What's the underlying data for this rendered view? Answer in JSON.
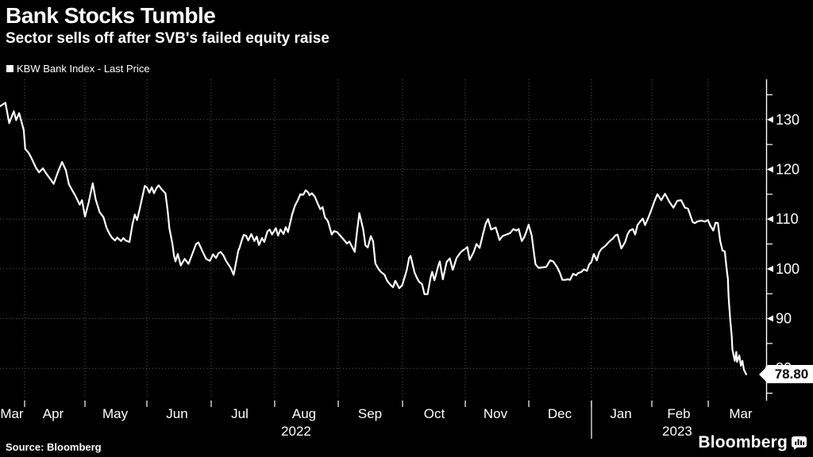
{
  "header": {
    "title": "Bank Stocks Tumble",
    "subtitle": "Sector sells off after SVB's failed equity raise"
  },
  "legend": {
    "items": [
      {
        "marker_icon": "white-square-marker",
        "label": "KBW Bank Index - Last Price"
      }
    ]
  },
  "footer": {
    "source": "Source: Bloomberg",
    "brand": "Bloomberg",
    "brand_icon": "bar-chart-badge"
  },
  "colors": {
    "background": "#000000",
    "foreground": "#ffffff",
    "line": "#ffffff",
    "grid": "#5a5a5a",
    "badge_bg": "#ffffff",
    "badge_text": "#000000"
  },
  "chart_data": {
    "type": "line",
    "title": "KBW Bank Index - Last Price",
    "legend_position": "top-left",
    "grid": "dotted",
    "x_axis": {
      "month_labels": [
        {
          "label": "Mar",
          "pos_pct": 1.55
        },
        {
          "label": "Apr",
          "pos_pct": 6.94
        },
        {
          "label": "May",
          "pos_pct": 15.03
        },
        {
          "label": "Jun",
          "pos_pct": 23.11
        },
        {
          "label": "Jul",
          "pos_pct": 31.3
        },
        {
          "label": "Aug",
          "pos_pct": 39.69
        },
        {
          "label": "Sep",
          "pos_pct": 48.29
        },
        {
          "label": "Oct",
          "pos_pct": 56.68
        },
        {
          "label": "Nov",
          "pos_pct": 64.66
        },
        {
          "label": "Dec",
          "pos_pct": 73.06
        },
        {
          "label": "Jan",
          "pos_pct": 81.04
        },
        {
          "label": "Feb",
          "pos_pct": 88.6
        },
        {
          "label": "Mar",
          "pos_pct": 96.68
        }
      ],
      "year_labels": [
        {
          "label": "2022",
          "pos_pct": 38.65
        },
        {
          "label": "2023",
          "pos_pct": 88.39
        }
      ],
      "month_boundaries_pct": [
        3.21,
        11.09,
        19.17,
        27.56,
        35.85,
        44.15,
        52.54,
        60.73,
        69.02,
        77.2,
        85.08,
        92.44
      ],
      "year_divider_pct": 77.2
    },
    "y_axis": {
      "side": "right",
      "min": 73.5,
      "max": 138.1,
      "major_ticks": [
        130,
        120,
        110,
        100,
        90,
        80
      ],
      "minor_ticks": [
        135,
        125,
        115,
        105,
        95,
        85,
        75
      ]
    },
    "last_price": 78.8,
    "last_price_label": "78.80",
    "series": [
      {
        "name": "KBW Bank Index - Last Price",
        "color": "#ffffff",
        "points_pct_value": [
          [
            0,
            132.7
          ],
          [
            0.7,
            133.4
          ],
          [
            1.2,
            129.3
          ],
          [
            1.8,
            131.7
          ],
          [
            2.1,
            129.9
          ],
          [
            2.5,
            131.3
          ],
          [
            3.1,
            127.9
          ],
          [
            3.3,
            124.1
          ],
          [
            3.7,
            123.4
          ],
          [
            4,
            122.6
          ],
          [
            4.7,
            120.3
          ],
          [
            5.1,
            119.4
          ],
          [
            5.6,
            120.2
          ],
          [
            6.1,
            119
          ],
          [
            6.6,
            118
          ],
          [
            7,
            117.1
          ],
          [
            7.6,
            119.6
          ],
          [
            8.1,
            121.5
          ],
          [
            8.6,
            119.8
          ],
          [
            9,
            117
          ],
          [
            9.5,
            115.6
          ],
          [
            9.8,
            114.8
          ],
          [
            10.4,
            112.9
          ],
          [
            10.7,
            113.8
          ],
          [
            11.1,
            110.5
          ],
          [
            11.6,
            113.5
          ],
          [
            12.1,
            117.2
          ],
          [
            12.5,
            113.9
          ],
          [
            13,
            111.4
          ],
          [
            13.5,
            110.4
          ],
          [
            13.9,
            108.3
          ],
          [
            14.3,
            107
          ],
          [
            14.6,
            106.3
          ],
          [
            15,
            105.7
          ],
          [
            15.3,
            106.3
          ],
          [
            15.8,
            105.6
          ],
          [
            16.1,
            106.2
          ],
          [
            16.4,
            105.7
          ],
          [
            16.9,
            105.4
          ],
          [
            17.3,
            109
          ],
          [
            17.6,
            110.9
          ],
          [
            17.9,
            109.8
          ],
          [
            18.3,
            112.5
          ],
          [
            18.9,
            116.7
          ],
          [
            19.2,
            116.3
          ],
          [
            19.5,
            115.3
          ],
          [
            19.8,
            116.4
          ],
          [
            20.1,
            115.2
          ],
          [
            20.4,
            116.2
          ],
          [
            20.7,
            116.8
          ],
          [
            21.1,
            116
          ],
          [
            21.6,
            115.2
          ],
          [
            21.9,
            111.5
          ],
          [
            22.1,
            108.2
          ],
          [
            22.5,
            105.1
          ],
          [
            22.7,
            102.7
          ],
          [
            22.9,
            101.5
          ],
          [
            23.2,
            103
          ],
          [
            23.6,
            100.7
          ],
          [
            24.1,
            102
          ],
          [
            24.6,
            101
          ],
          [
            25.1,
            103
          ],
          [
            25.6,
            105
          ],
          [
            25.9,
            105.3
          ],
          [
            26.4,
            103.6
          ],
          [
            26.9,
            102
          ],
          [
            27.4,
            101.6
          ],
          [
            27.8,
            102.9
          ],
          [
            28.2,
            102.2
          ],
          [
            28.5,
            103.1
          ],
          [
            28.8,
            103.4
          ],
          [
            29.2,
            102.6
          ],
          [
            29.5,
            101.6
          ],
          [
            30.1,
            100.2
          ],
          [
            30.5,
            98.8
          ],
          [
            31.1,
            103.6
          ],
          [
            31.3,
            104.4
          ],
          [
            31.6,
            105.9
          ],
          [
            31.8,
            106.8
          ],
          [
            32.1,
            106.7
          ],
          [
            32.4,
            105.7
          ],
          [
            32.8,
            107
          ],
          [
            33.2,
            105.6
          ],
          [
            33.5,
            106.5
          ],
          [
            33.8,
            104.8
          ],
          [
            34.2,
            106.2
          ],
          [
            34.5,
            105.4
          ],
          [
            34.9,
            107.5
          ],
          [
            35.2,
            107.9
          ],
          [
            35.5,
            106.9
          ],
          [
            36,
            108.2
          ],
          [
            36.3,
            106.7
          ],
          [
            36.6,
            107.9
          ],
          [
            37,
            107
          ],
          [
            37.3,
            108.4
          ],
          [
            37.6,
            107.4
          ],
          [
            38.1,
            110.8
          ],
          [
            38.5,
            112.7
          ],
          [
            38.9,
            113.9
          ],
          [
            39.2,
            115
          ],
          [
            39.6,
            114.9
          ],
          [
            39.9,
            115.8
          ],
          [
            40.2,
            115.4
          ],
          [
            40.4,
            114.8
          ],
          [
            40.7,
            115.2
          ],
          [
            41.1,
            114.5
          ],
          [
            41.5,
            113
          ],
          [
            41.8,
            112
          ],
          [
            42.1,
            112.4
          ],
          [
            42.4,
            110.4
          ],
          [
            42.8,
            109.6
          ],
          [
            43.1,
            108
          ],
          [
            43.3,
            106.9
          ],
          [
            43.6,
            107.6
          ],
          [
            44,
            107.4
          ],
          [
            44.4,
            106.7
          ],
          [
            44.9,
            105.8
          ],
          [
            45.3,
            105.1
          ],
          [
            45.6,
            105.5
          ],
          [
            45.9,
            104.6
          ],
          [
            46.3,
            103.4
          ],
          [
            46.6,
            107.5
          ],
          [
            46.9,
            111.2
          ],
          [
            47.4,
            108
          ],
          [
            47.7,
            104.7
          ],
          [
            48,
            104.3
          ],
          [
            48.4,
            106.6
          ],
          [
            48.7,
            105.5
          ],
          [
            49,
            101.1
          ],
          [
            49.4,
            100
          ],
          [
            49.7,
            99.4
          ],
          [
            50.2,
            98.8
          ],
          [
            50.5,
            97.7
          ],
          [
            50.9,
            96.9
          ],
          [
            51.3,
            96.3
          ],
          [
            51.6,
            97.6
          ],
          [
            52.1,
            96.1
          ],
          [
            52.5,
            96.7
          ],
          [
            53.1,
            99.8
          ],
          [
            53.4,
            102.2
          ],
          [
            53.6,
            102.6
          ],
          [
            54.1,
            99.3
          ],
          [
            54.4,
            98.2
          ],
          [
            54.7,
            97.4
          ],
          [
            55.1,
            96.9
          ],
          [
            55.4,
            94.9
          ],
          [
            55.8,
            94.9
          ],
          [
            56.2,
            98.2
          ],
          [
            56.4,
            99.4
          ],
          [
            56.7,
            97.7
          ],
          [
            57.2,
            100.6
          ],
          [
            57.4,
            101.5
          ],
          [
            57.8,
            97.9
          ],
          [
            58.3,
            101.4
          ],
          [
            58.7,
            102.1
          ],
          [
            59.1,
            99.8
          ],
          [
            59.6,
            102.2
          ],
          [
            60.1,
            103.3
          ],
          [
            60.4,
            103.7
          ],
          [
            60.7,
            104
          ],
          [
            61,
            104.4
          ],
          [
            61.3,
            101.8
          ],
          [
            61.8,
            103.3
          ],
          [
            62.2,
            105
          ],
          [
            62.6,
            104.2
          ],
          [
            63,
            106.8
          ],
          [
            63.4,
            109.1
          ],
          [
            63.7,
            110
          ],
          [
            64.1,
            107.9
          ],
          [
            64.7,
            108.3
          ],
          [
            65.2,
            105.8
          ],
          [
            65.6,
            106.6
          ],
          [
            66.1,
            106.9
          ],
          [
            66.6,
            107.2
          ],
          [
            67,
            108
          ],
          [
            67.4,
            107.7
          ],
          [
            67.7,
            108
          ],
          [
            68.1,
            105.6
          ],
          [
            68.4,
            106.3
          ],
          [
            68.7,
            107.5
          ],
          [
            69,
            108.9
          ],
          [
            69.4,
            106.7
          ],
          [
            69.7,
            103.1
          ],
          [
            69.9,
            100.9
          ],
          [
            70.3,
            100.2
          ],
          [
            70.8,
            100.3
          ],
          [
            71.3,
            100.4
          ],
          [
            71.8,
            101.7
          ],
          [
            72.2,
            101.5
          ],
          [
            72.7,
            100.4
          ],
          [
            73.1,
            99.1
          ],
          [
            73.4,
            97.8
          ],
          [
            73.8,
            97.8
          ],
          [
            74.1,
            97.9
          ],
          [
            74.4,
            97.8
          ],
          [
            74.8,
            99
          ],
          [
            75.2,
            98.7
          ],
          [
            75.4,
            99.1
          ],
          [
            75.9,
            99.4
          ],
          [
            76.2,
            99.9
          ],
          [
            76.6,
            99.6
          ],
          [
            76.9,
            100.9
          ],
          [
            77.2,
            101.4
          ],
          [
            77.5,
            103
          ],
          [
            77.9,
            101.7
          ],
          [
            78.2,
            103.3
          ],
          [
            78.5,
            104
          ],
          [
            79,
            104.6
          ],
          [
            79.3,
            105.1
          ],
          [
            79.6,
            105.6
          ],
          [
            80,
            106.1
          ],
          [
            80.3,
            106.7
          ],
          [
            80.6,
            106.9
          ],
          [
            81.1,
            104.1
          ],
          [
            81.6,
            105.4
          ],
          [
            81.9,
            106.9
          ],
          [
            82.2,
            107.7
          ],
          [
            82.6,
            108
          ],
          [
            82.9,
            106.9
          ],
          [
            83.2,
            108.8
          ],
          [
            83.6,
            109.6
          ],
          [
            83.9,
            110.1
          ],
          [
            84.2,
            108.8
          ],
          [
            84.7,
            110.6
          ],
          [
            85,
            111.8
          ],
          [
            85.4,
            113.5
          ],
          [
            85.8,
            115
          ],
          [
            86.3,
            113.8
          ],
          [
            86.8,
            115.1
          ],
          [
            87.4,
            113.4
          ],
          [
            87.9,
            112.3
          ],
          [
            88.4,
            113.7
          ],
          [
            88.9,
            113.8
          ],
          [
            89.4,
            112.3
          ],
          [
            89.8,
            112.1
          ],
          [
            90.4,
            109.4
          ],
          [
            90.7,
            109.2
          ],
          [
            91,
            109.5
          ],
          [
            91.5,
            109.7
          ],
          [
            92,
            109.5
          ],
          [
            92.4,
            109.8
          ],
          [
            92.7,
            108.7
          ],
          [
            93.1,
            107.7
          ],
          [
            93.4,
            109.3
          ],
          [
            93.7,
            109.2
          ],
          [
            94,
            105.6
          ],
          [
            94.3,
            103.7
          ],
          [
            94.6,
            103.5
          ],
          [
            94.8,
            100.6
          ],
          [
            95,
            98
          ],
          [
            95.1,
            94.3
          ],
          [
            95.3,
            90.1
          ],
          [
            95.5,
            86.5
          ],
          [
            95.6,
            83.8
          ],
          [
            95.9,
            81.5
          ],
          [
            96.1,
            83.3
          ],
          [
            96.2,
            81.3
          ],
          [
            96.5,
            82.6
          ],
          [
            96.7,
            80.5
          ],
          [
            96.9,
            81.5
          ],
          [
            97.1,
            79.7
          ],
          [
            97.4,
            78.8
          ]
        ]
      }
    ]
  }
}
